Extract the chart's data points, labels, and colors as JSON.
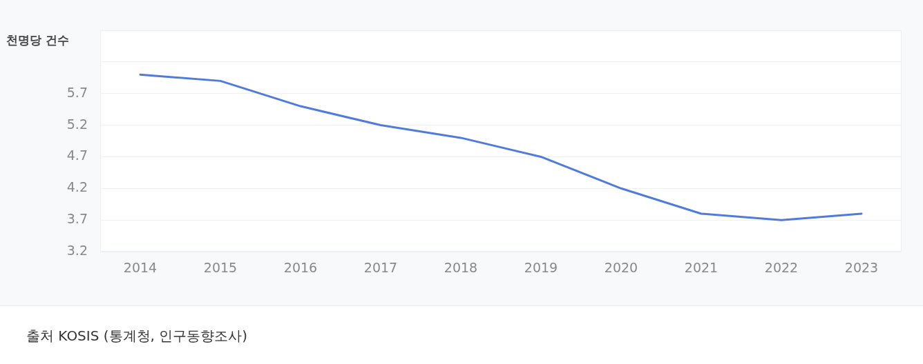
{
  "chart_data": {
    "type": "line",
    "ylabel": "천명당 건수",
    "categories": [
      "2014",
      "2015",
      "2016",
      "2017",
      "2018",
      "2019",
      "2020",
      "2021",
      "2022",
      "2023"
    ],
    "series": [
      {
        "color": "#4f7ade",
        "values": [
          6.0,
          5.9,
          5.5,
          5.2,
          5.0,
          4.7,
          4.2,
          3.8,
          3.7,
          3.8
        ]
      }
    ],
    "ylim": [
      3.2,
      6.7
    ],
    "yticks": [
      3.2,
      3.7,
      4.2,
      4.7,
      5.2,
      5.7,
      {
        "value": 6.2,
        "label": null
      }
    ],
    "grid": "y",
    "legend": false,
    "marker": "none",
    "line_style": "solid",
    "annotations": [
      "출처 KOSIS (통계청, 인구동향조사)"
    ]
  }
}
